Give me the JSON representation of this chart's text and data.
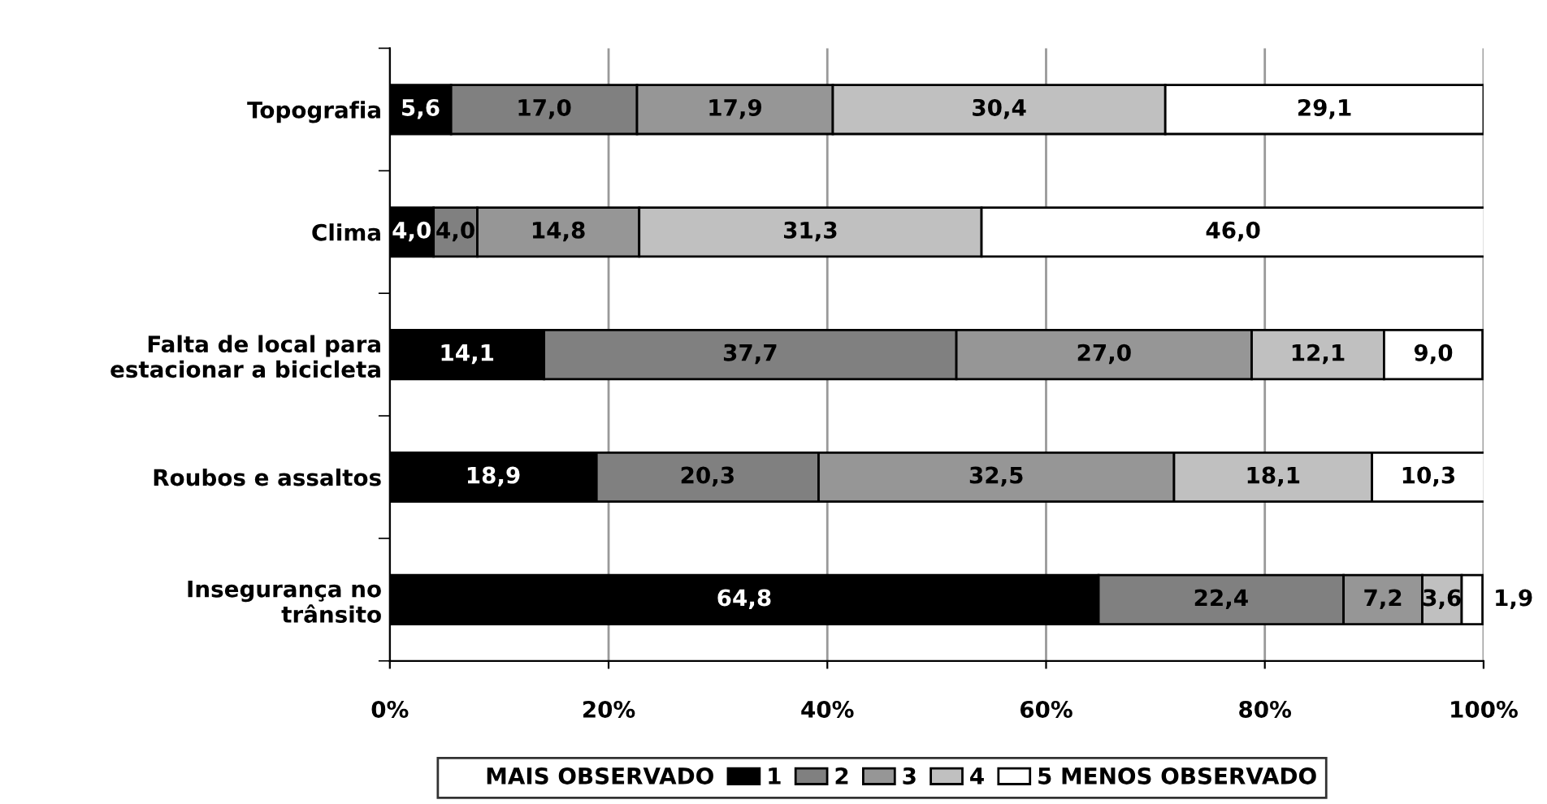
{
  "chart_data": {
    "type": "bar",
    "orientation": "horizontal",
    "stacked": true,
    "categories": [
      "Topografia",
      "Clima",
      "Falta de local para\nestacionar a bicicleta",
      "Roubos e assaltos",
      "Insegurança no\ntrânsito"
    ],
    "series": [
      {
        "name": "1",
        "color": "#000000",
        "values": [
          5.6,
          4.0,
          14.1,
          18.9,
          64.8
        ],
        "value_labels": [
          "5,6",
          "4,0",
          "14,1",
          "18,9",
          "64,8"
        ]
      },
      {
        "name": "2",
        "color": "#808080",
        "values": [
          17.0,
          4.0,
          37.7,
          20.3,
          22.4
        ],
        "value_labels": [
          "17,0",
          "4,0",
          "37,7",
          "20,3",
          "22,4"
        ]
      },
      {
        "name": "3",
        "color": "#969696",
        "values": [
          17.9,
          14.8,
          27.0,
          32.5,
          7.2
        ],
        "value_labels": [
          "17,9",
          "14,8",
          "27,0",
          "32,5",
          "7,2"
        ]
      },
      {
        "name": "4",
        "color": "#c0c0c0",
        "values": [
          30.4,
          31.3,
          12.1,
          18.1,
          3.6
        ],
        "value_labels": [
          "30,4",
          "31,3",
          "12,1",
          "18,1",
          "3,6"
        ]
      },
      {
        "name": "5 MENOS OBSERVADO",
        "color": "#ffffff",
        "values": [
          29.1,
          46.0,
          9.0,
          10.3,
          1.9
        ],
        "value_labels": [
          "29,1",
          "46,0",
          "9,0",
          "10,3",
          "1,9"
        ]
      }
    ],
    "legend_title": "MAIS OBSERVADO",
    "xlim": [
      0,
      100
    ],
    "xticks": [
      {
        "value": 0,
        "label": "0%"
      },
      {
        "value": 20,
        "label": "20%"
      },
      {
        "value": 40,
        "label": "40%"
      },
      {
        "value": 60,
        "label": "60%"
      },
      {
        "value": 80,
        "label": "80%"
      },
      {
        "value": 100,
        "label": "100%"
      }
    ],
    "grid": "x",
    "legend": "bottom"
  }
}
